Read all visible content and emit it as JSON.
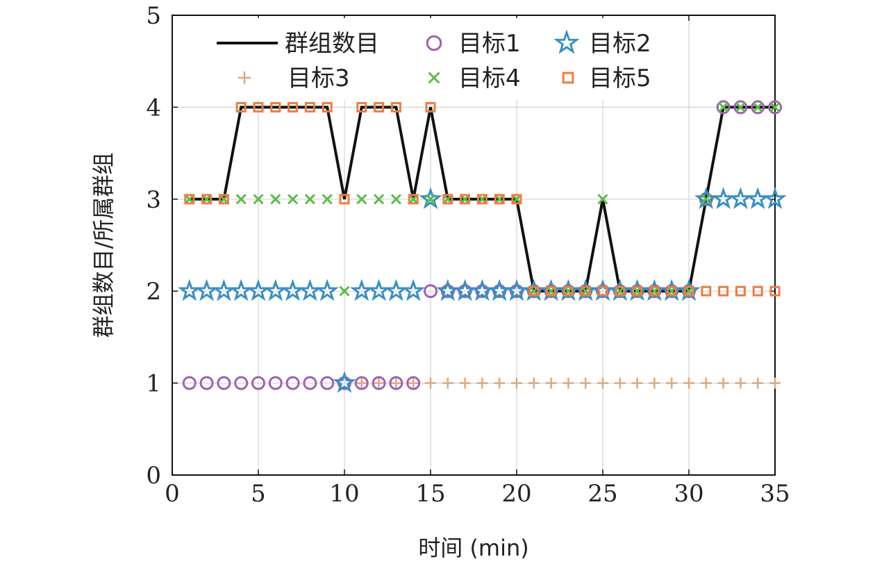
{
  "chart_data": {
    "type": "line",
    "xlabel": "时间 (min)",
    "ylabel": "群组数目/所属群组",
    "xlim": [
      0,
      35
    ],
    "ylim": [
      0,
      5
    ],
    "xticks": [
      0,
      5,
      10,
      15,
      20,
      25,
      30,
      35
    ],
    "yticks": [
      0,
      1,
      2,
      3,
      4,
      5
    ],
    "grid": true,
    "legend_position": "top",
    "x": [
      1,
      2,
      3,
      4,
      5,
      6,
      7,
      8,
      9,
      10,
      11,
      12,
      13,
      14,
      15,
      16,
      17,
      18,
      19,
      20,
      21,
      22,
      23,
      24,
      25,
      26,
      27,
      28,
      29,
      30,
      31,
      32,
      33,
      34,
      35
    ],
    "series": [
      {
        "name": "群组数目",
        "marker": "line",
        "color": "#111111",
        "x": [
          1,
          2,
          3,
          4,
          5,
          6,
          7,
          8,
          9,
          10,
          11,
          12,
          13,
          14,
          15,
          16,
          17,
          18,
          19,
          20,
          21,
          22,
          23,
          24,
          25,
          26,
          27,
          28,
          29,
          30,
          31,
          32,
          33,
          34,
          35
        ],
        "values": [
          3,
          3,
          3,
          4,
          4,
          4,
          4,
          4,
          4,
          3,
          4,
          4,
          4,
          3,
          4,
          3,
          3,
          3,
          3,
          3,
          2,
          2,
          2,
          2,
          3,
          2,
          2,
          2,
          2,
          2,
          3,
          4,
          4,
          4,
          4
        ]
      },
      {
        "name": "目标1",
        "marker": "circle",
        "color": "#a05fb4",
        "x": [
          1,
          2,
          3,
          4,
          5,
          6,
          7,
          8,
          9,
          10,
          11,
          12,
          13,
          14,
          15,
          16,
          17,
          18,
          19,
          20,
          21,
          22,
          23,
          24,
          25,
          26,
          27,
          28,
          29,
          30,
          31,
          32,
          33,
          34,
          35
        ],
        "values": [
          1,
          1,
          1,
          1,
          1,
          1,
          1,
          1,
          1,
          1,
          1,
          1,
          1,
          1,
          2,
          2,
          2,
          2,
          2,
          2,
          2,
          2,
          2,
          2,
          2,
          2,
          2,
          2,
          2,
          2,
          3,
          4,
          4,
          4,
          4
        ]
      },
      {
        "name": "目标2",
        "marker": "star",
        "color": "#3a8fc0",
        "x": [
          1,
          2,
          3,
          4,
          5,
          6,
          7,
          8,
          9,
          10,
          11,
          12,
          13,
          14,
          15,
          16,
          17,
          18,
          19,
          20,
          21,
          22,
          23,
          24,
          25,
          26,
          27,
          28,
          29,
          30,
          31,
          32,
          33,
          34,
          35
        ],
        "values": [
          2,
          2,
          2,
          2,
          2,
          2,
          2,
          2,
          2,
          1,
          2,
          2,
          2,
          2,
          3,
          2,
          2,
          2,
          2,
          2,
          2,
          2,
          2,
          2,
          2,
          2,
          2,
          2,
          2,
          2,
          3,
          3,
          3,
          3,
          3
        ]
      },
      {
        "name": "目标3",
        "marker": "plus",
        "color": "#e0a87a",
        "x": [
          11,
          12,
          13,
          14,
          15,
          16,
          17,
          18,
          19,
          20,
          21,
          22,
          23,
          24,
          25,
          26,
          27,
          28,
          29,
          30,
          31,
          32,
          33,
          34,
          35
        ],
        "values": [
          1,
          1,
          1,
          1,
          1,
          1,
          1,
          1,
          1,
          1,
          1,
          1,
          1,
          1,
          1,
          1,
          1,
          1,
          1,
          1,
          1,
          1,
          1,
          1,
          1
        ]
      },
      {
        "name": "目标4",
        "marker": "x",
        "color": "#5fba4a",
        "x": [
          1,
          2,
          3,
          4,
          5,
          6,
          7,
          8,
          9,
          10,
          11,
          12,
          13,
          14,
          15,
          16,
          17,
          18,
          19,
          20,
          21,
          22,
          23,
          24,
          25,
          26,
          27,
          28,
          29,
          30,
          31,
          32,
          33,
          34,
          35
        ],
        "values": [
          3,
          3,
          3,
          3,
          3,
          3,
          3,
          3,
          3,
          2,
          3,
          3,
          3,
          3,
          3,
          3,
          3,
          3,
          3,
          3,
          2,
          2,
          2,
          2,
          3,
          2,
          2,
          2,
          2,
          2,
          3,
          4,
          4,
          4,
          4
        ]
      },
      {
        "name": "目标5",
        "marker": "square",
        "color": "#ee7d42",
        "x": [
          1,
          2,
          3,
          4,
          5,
          6,
          7,
          8,
          9,
          10,
          11,
          12,
          13,
          14,
          15,
          16,
          17,
          18,
          19,
          20,
          21,
          22,
          23,
          24,
          25,
          26,
          27,
          28,
          29,
          30,
          31,
          32,
          33,
          34,
          35
        ],
        "values": [
          3,
          3,
          3,
          4,
          4,
          4,
          4,
          4,
          4,
          3,
          4,
          4,
          4,
          3,
          4,
          3,
          3,
          3,
          3,
          3,
          2,
          2,
          2,
          2,
          2,
          2,
          2,
          2,
          2,
          2,
          2,
          2,
          2,
          2,
          2
        ]
      }
    ]
  }
}
